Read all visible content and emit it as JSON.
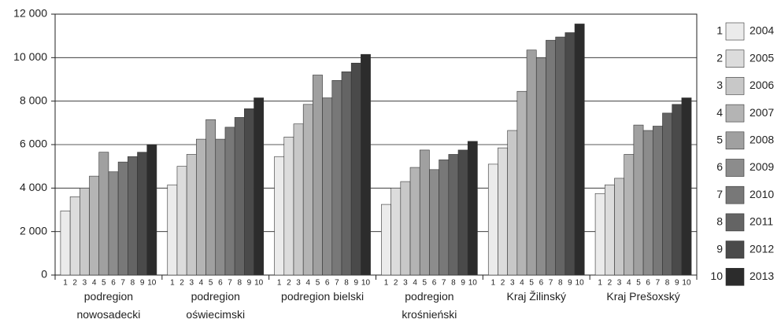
{
  "chart_data": {
    "type": "bar",
    "categories": [
      "podregion nowosadecki",
      "podregion oświecimski",
      "podregion bielski",
      "podregion krośnieński",
      "Kraj Žilinský",
      "Kraj Prešoxský"
    ],
    "series_numbers": [
      1,
      2,
      3,
      4,
      5,
      6,
      7,
      8,
      9,
      10
    ],
    "series": [
      {
        "name": "2004",
        "color": "#ebebeb",
        "values": [
          2950,
          4150,
          5450,
          3250,
          5100,
          3750
        ]
      },
      {
        "name": "2005",
        "color": "#dcdcdc",
        "values": [
          3600,
          5000,
          6350,
          4000,
          5850,
          4150
        ]
      },
      {
        "name": "2006",
        "color": "#c8c8c8",
        "values": [
          4000,
          5550,
          6950,
          4300,
          6650,
          4450
        ]
      },
      {
        "name": "2007",
        "color": "#b4b4b4",
        "values": [
          4550,
          6250,
          7850,
          4950,
          8450,
          5550
        ]
      },
      {
        "name": "2008",
        "color": "#a0a0a0",
        "values": [
          5650,
          7150,
          9200,
          5750,
          10350,
          6900
        ]
      },
      {
        "name": "2009",
        "color": "#8c8c8c",
        "values": [
          4750,
          6250,
          8150,
          4850,
          10000,
          6650
        ]
      },
      {
        "name": "2010",
        "color": "#787878",
        "values": [
          5200,
          6800,
          8950,
          5300,
          10800,
          6850
        ]
      },
      {
        "name": "2011",
        "color": "#646464",
        "values": [
          5450,
          7250,
          9350,
          5550,
          10950,
          7450
        ]
      },
      {
        "name": "2012",
        "color": "#4a4a4a",
        "values": [
          5650,
          7650,
          9750,
          5750,
          11150,
          7850
        ]
      },
      {
        "name": "2013",
        "color": "#2c2c2c",
        "values": [
          6000,
          8150,
          10150,
          6150,
          11550,
          8150
        ]
      }
    ],
    "ylim": [
      0,
      12000
    ],
    "yticks": [
      0,
      {
        "value": 2000,
        "label": "2 000"
      },
      {
        "value": 4000,
        "label": "4 000"
      },
      {
        "value": 6000,
        "label": "6 000"
      },
      {
        "value": 8000,
        "label": "8 000"
      },
      {
        "value": 10000,
        "label": "10 000"
      },
      {
        "value": 12000,
        "label": "12 000"
      }
    ],
    "grid": true
  }
}
